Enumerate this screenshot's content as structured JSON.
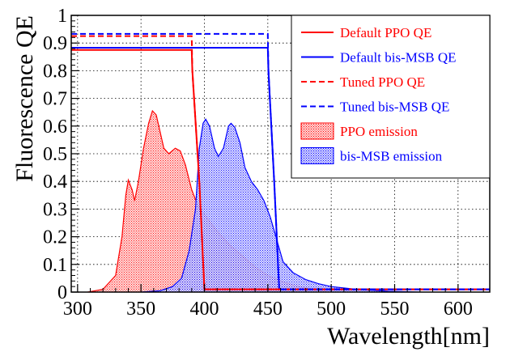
{
  "chart_data": {
    "type": "line",
    "title": "",
    "xlabel": "Wavelength[nm]",
    "ylabel": "Fluorescence QE",
    "xlim": [
      295,
      625
    ],
    "ylim": [
      0,
      1
    ],
    "grid": true,
    "x_ticks": [
      300,
      350,
      400,
      450,
      500,
      550,
      600
    ],
    "y_ticks": [
      0,
      0.1,
      0.2,
      0.3,
      0.4,
      0.5,
      0.6,
      0.7,
      0.8,
      0.9,
      1
    ],
    "x_tick_labels": [
      "300",
      "350",
      "400",
      "450",
      "500",
      "550",
      "600"
    ],
    "y_tick_labels": [
      "0",
      "0.1",
      "0.2",
      "0.3",
      "0.4",
      "0.5",
      "0.6",
      "0.7",
      "0.8",
      "0.9",
      "1"
    ],
    "legend_position": "top-right",
    "series": [
      {
        "id": "default-ppo",
        "name": "Default PPO QE",
        "kind": "line",
        "dash": "solid",
        "color": "#ff0000",
        "points": [
          [
            295,
            0.875
          ],
          [
            390,
            0.875
          ],
          [
            390.5,
            0.8
          ],
          [
            396,
            0.4
          ],
          [
            400,
            0.01
          ],
          [
            625,
            0.01
          ]
        ]
      },
      {
        "id": "default-bismsb",
        "name": "Default bis-MSB QE",
        "kind": "line",
        "dash": "solid",
        "color": "#0000ff",
        "points": [
          [
            295,
            0.883
          ],
          [
            450,
            0.883
          ],
          [
            450.5,
            0.8
          ],
          [
            455,
            0.4
          ],
          [
            459,
            0.01
          ],
          [
            625,
            0.01
          ]
        ]
      },
      {
        "id": "tuned-ppo",
        "name": "Tuned PPO QE",
        "kind": "line",
        "dash": "dashed",
        "color": "#ff0000",
        "points": [
          [
            295,
            0.925
          ],
          [
            390,
            0.925
          ],
          [
            390.5,
            0.8
          ],
          [
            396,
            0.4
          ],
          [
            400,
            0.01
          ],
          [
            625,
            0.01
          ]
        ]
      },
      {
        "id": "tuned-bismsb",
        "name": "Tuned bis-MSB QE",
        "kind": "line",
        "dash": "dashed",
        "color": "#0000ff",
        "points": [
          [
            295,
            0.933
          ],
          [
            450,
            0.933
          ],
          [
            450.5,
            0.8
          ],
          [
            455,
            0.4
          ],
          [
            459,
            0.01
          ],
          [
            625,
            0.01
          ]
        ]
      },
      {
        "id": "ppo-emission",
        "name": "PPO emission",
        "kind": "area",
        "color": "#ff0000",
        "points": [
          [
            308,
            0.0
          ],
          [
            320,
            0.01
          ],
          [
            330,
            0.06
          ],
          [
            335,
            0.2
          ],
          [
            338,
            0.35
          ],
          [
            340,
            0.405
          ],
          [
            343,
            0.37
          ],
          [
            345,
            0.33
          ],
          [
            348,
            0.4
          ],
          [
            352,
            0.52
          ],
          [
            356,
            0.61
          ],
          [
            359,
            0.655
          ],
          [
            362,
            0.64
          ],
          [
            365,
            0.58
          ],
          [
            368,
            0.52
          ],
          [
            372,
            0.5
          ],
          [
            377,
            0.52
          ],
          [
            381,
            0.51
          ],
          [
            385,
            0.46
          ],
          [
            390,
            0.37
          ],
          [
            395,
            0.31
          ],
          [
            400,
            0.28
          ],
          [
            410,
            0.22
          ],
          [
            420,
            0.17
          ],
          [
            430,
            0.13
          ],
          [
            440,
            0.09
          ],
          [
            450,
            0.06
          ],
          [
            460,
            0.04
          ],
          [
            470,
            0.025
          ],
          [
            485,
            0.01
          ],
          [
            500,
            0.0
          ]
        ]
      },
      {
        "id": "bismsb-emission",
        "name": "bis-MSB emission",
        "kind": "area",
        "color": "#0000ff",
        "points": [
          [
            350,
            0.0
          ],
          [
            365,
            0.005
          ],
          [
            375,
            0.02
          ],
          [
            382,
            0.05
          ],
          [
            388,
            0.15
          ],
          [
            393,
            0.3
          ],
          [
            396,
            0.52
          ],
          [
            399,
            0.61
          ],
          [
            401,
            0.625
          ],
          [
            404,
            0.6
          ],
          [
            408,
            0.52
          ],
          [
            411,
            0.49
          ],
          [
            415,
            0.52
          ],
          [
            419,
            0.6
          ],
          [
            421,
            0.61
          ],
          [
            424,
            0.595
          ],
          [
            428,
            0.54
          ],
          [
            432,
            0.45
          ],
          [
            437,
            0.4
          ],
          [
            442,
            0.37
          ],
          [
            447,
            0.33
          ],
          [
            452,
            0.27
          ],
          [
            457,
            0.19
          ],
          [
            462,
            0.11
          ],
          [
            470,
            0.07
          ],
          [
            480,
            0.045
          ],
          [
            490,
            0.03
          ],
          [
            500,
            0.02
          ],
          [
            520,
            0.01
          ],
          [
            545,
            0.003
          ],
          [
            570,
            0.0
          ]
        ]
      }
    ]
  }
}
